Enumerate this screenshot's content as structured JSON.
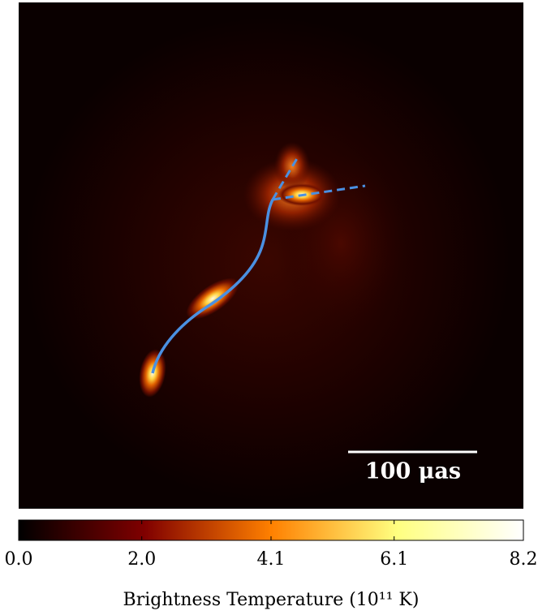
{
  "chart_data": {
    "type": "image",
    "scale_bar_label": "100 μas",
    "colorbar": {
      "clim": [
        0,
        8.2
      ],
      "ticks": [
        {
          "value": 0,
          "label": "0.0"
        },
        {
          "value": 2,
          "label": "2.0"
        },
        4.1,
        6.1,
        8.2
      ],
      "label": "Brightness Temperature (10¹¹ K)"
    }
  }
}
